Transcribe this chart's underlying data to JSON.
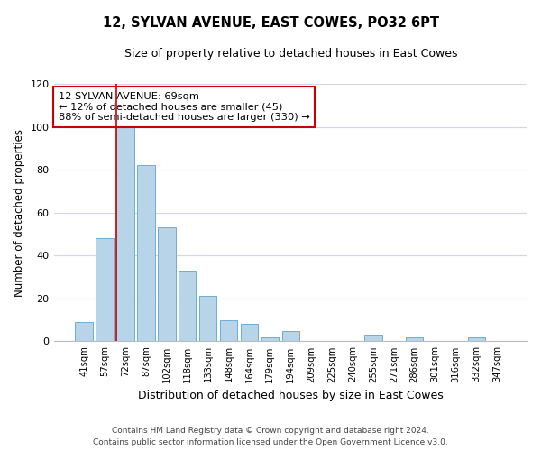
{
  "title": "12, SYLVAN AVENUE, EAST COWES, PO32 6PT",
  "subtitle": "Size of property relative to detached houses in East Cowes",
  "xlabel": "Distribution of detached houses by size in East Cowes",
  "ylabel": "Number of detached properties",
  "bar_labels": [
    "41sqm",
    "57sqm",
    "72sqm",
    "87sqm",
    "102sqm",
    "118sqm",
    "133sqm",
    "148sqm",
    "164sqm",
    "179sqm",
    "194sqm",
    "209sqm",
    "225sqm",
    "240sqm",
    "255sqm",
    "271sqm",
    "286sqm",
    "301sqm",
    "316sqm",
    "332sqm",
    "347sqm"
  ],
  "bar_heights": [
    9,
    48,
    100,
    82,
    53,
    33,
    21,
    10,
    8,
    2,
    5,
    0,
    0,
    0,
    3,
    0,
    2,
    0,
    0,
    2,
    0
  ],
  "bar_color": "#b8d4e8",
  "bar_edge_color": "#6aaed6",
  "vline_bar_index": 2,
  "vline_color": "#cc0000",
  "ylim": [
    0,
    120
  ],
  "yticks": [
    0,
    20,
    40,
    60,
    80,
    100,
    120
  ],
  "annotation_title": "12 SYLVAN AVENUE: 69sqm",
  "annotation_line1": "← 12% of detached houses are smaller (45)",
  "annotation_line2": "88% of semi-detached houses are larger (330) →",
  "annotation_box_color": "#ffffff",
  "annotation_box_edge": "#cc0000",
  "footer_line1": "Contains HM Land Registry data © Crown copyright and database right 2024.",
  "footer_line2": "Contains public sector information licensed under the Open Government Licence v3.0.",
  "bg_color": "#ffffff",
  "grid_color": "#d0d8e8"
}
